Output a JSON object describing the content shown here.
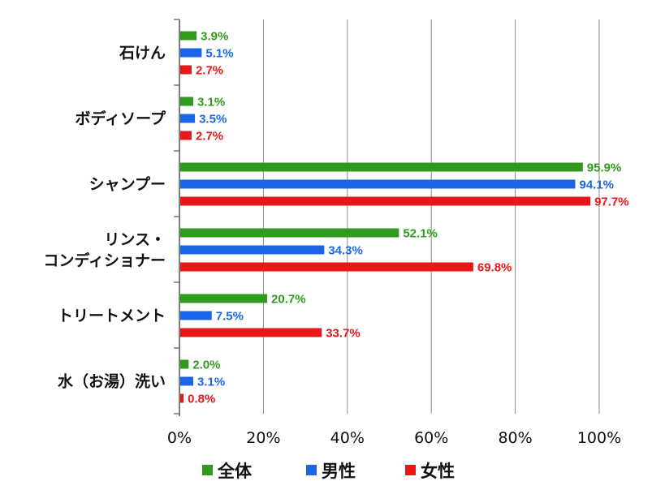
{
  "chart_data": {
    "type": "bar",
    "orientation": "horizontal",
    "categories": [
      [
        "石けん"
      ],
      [
        "ボディソープ"
      ],
      [
        "シャンプー"
      ],
      [
        "リンス・",
        "コンディショナー"
      ],
      [
        "トリートメント"
      ],
      [
        "水（お湯）洗い"
      ]
    ],
    "series": [
      {
        "name": "全体",
        "color": "#2f9a1e",
        "values": [
          3.9,
          3.1,
          95.9,
          52.1,
          20.7,
          2.0
        ],
        "labels": [
          "3.9%",
          "3.1%",
          "95.9%",
          "52.1%",
          "20.7%",
          "2.0%"
        ]
      },
      {
        "name": "男性",
        "color": "#1a66e6",
        "values": [
          5.1,
          3.5,
          94.1,
          34.3,
          7.5,
          3.1
        ],
        "labels": [
          "5.1%",
          "3.5%",
          "94.1%",
          "34.3%",
          "7.5%",
          "3.1%"
        ]
      },
      {
        "name": "女性",
        "color": "#e81818",
        "values": [
          2.7,
          2.7,
          97.7,
          69.8,
          33.7,
          0.8
        ],
        "labels": [
          "2.7%",
          "2.7%",
          "97.7%",
          "69.8%",
          "33.7%",
          "0.8%"
        ]
      }
    ],
    "xlim": [
      0,
      100
    ],
    "xticks": [
      "0%",
      "20%",
      "40%",
      "60%",
      "80%",
      "100%"
    ],
    "grid": true,
    "legend_position": "bottom"
  }
}
